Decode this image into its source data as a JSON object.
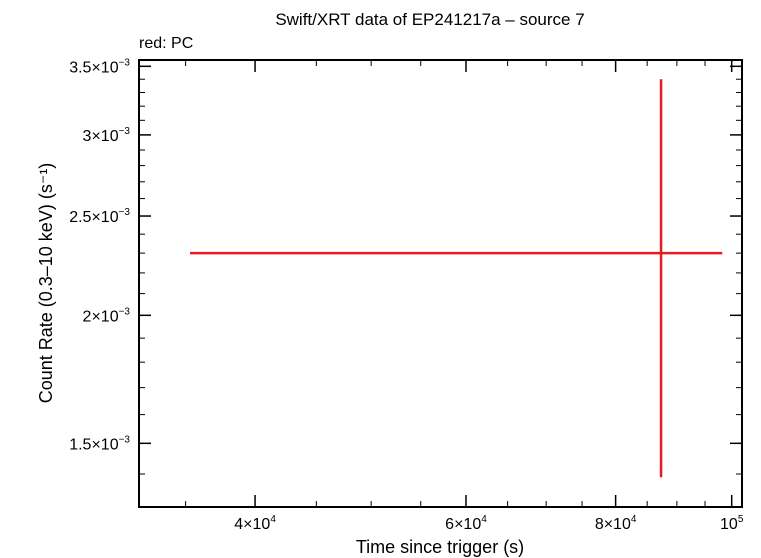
{
  "chart_data": {
    "type": "scatter",
    "title": "Swift/XRT data of EP241217a – source 7",
    "subtitle": "red: PC",
    "xlabel": "Time since trigger (s)",
    "ylabel": "Count Rate (0.3–10 keV) (s⁻¹)",
    "x_scale": "log",
    "y_scale": "log",
    "xlim": [
      32000,
      102000
    ],
    "ylim": [
      0.0013,
      0.00355
    ],
    "x_ticks": [
      {
        "value": 40000,
        "mant": "4×10",
        "exp": "4"
      },
      {
        "value": 60000,
        "mant": "6×10",
        "exp": "4"
      },
      {
        "value": 80000,
        "mant": "8×10",
        "exp": "4"
      },
      {
        "value": 100000,
        "mant": "10",
        "exp": "5"
      }
    ],
    "y_ticks": [
      {
        "value": 0.0015,
        "mant": "1.5×10",
        "exp": "−3"
      },
      {
        "value": 0.002,
        "mant": "2×10",
        "exp": "−3"
      },
      {
        "value": 0.0025,
        "mant": "2.5×10",
        "exp": "−3"
      },
      {
        "value": 0.003,
        "mant": "3×10",
        "exp": "−3"
      },
      {
        "value": 0.0035,
        "mant": "3.5×10",
        "exp": "−3"
      }
    ],
    "series": [
      {
        "name": "PC",
        "color": "#e8191f",
        "points": [
          {
            "x": 87300,
            "y": 0.0023,
            "x_low": 35300,
            "x_high": 98200,
            "y_low": 0.00139,
            "y_high": 0.0034
          }
        ]
      }
    ]
  }
}
